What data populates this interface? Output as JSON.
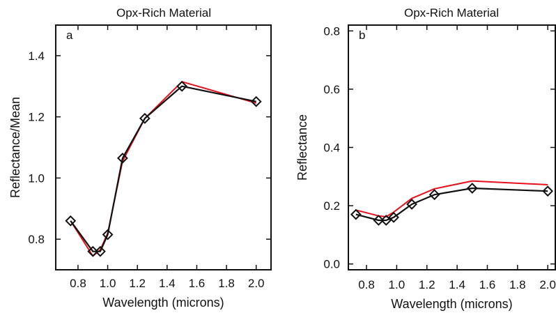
{
  "chart_data": [
    {
      "type": "line",
      "panel_letter": "a",
      "title": "Opx-Rich Material",
      "xlabel": "Wavelength (microns)",
      "ylabel": "Reflectance/Mean",
      "xlim": [
        0.65,
        2.1
      ],
      "ylim": [
        0.7,
        1.5
      ],
      "xticks": [
        0.8,
        1.0,
        1.2,
        1.4,
        1.6,
        1.8,
        2.0
      ],
      "xtick_labels": [
        "0.8",
        "1.0",
        "1.2",
        "1.4",
        "1.6",
        "1.8",
        "2.0"
      ],
      "yticks": [
        0.8,
        1.0,
        1.2,
        1.4
      ],
      "ytick_labels": [
        "0.8",
        "1.0",
        "1.2",
        "1.4"
      ],
      "series": [
        {
          "color": "#111111",
          "marker": "diamond",
          "x": [
            0.75,
            0.9,
            0.95,
            1.0,
            1.1,
            1.25,
            1.5,
            2.0
          ],
          "y": [
            0.86,
            0.76,
            0.76,
            0.815,
            1.065,
            1.195,
            1.3,
            1.25
          ]
        },
        {
          "color": "#e8101a",
          "marker": "none",
          "x": [
            0.75,
            0.9,
            0.95,
            1.0,
            1.1,
            1.25,
            1.5,
            2.0
          ],
          "y": [
            0.86,
            0.745,
            0.765,
            0.82,
            1.055,
            1.195,
            1.315,
            1.245
          ]
        }
      ]
    },
    {
      "type": "line",
      "panel_letter": "b",
      "title": "Opx-Rich Material",
      "xlabel": "Wavelength (microns)",
      "ylabel": "Reflectance",
      "xlim": [
        0.68,
        2.05
      ],
      "ylim": [
        -0.02,
        0.82
      ],
      "xticks": [
        0.8,
        1.0,
        1.2,
        1.4,
        1.6,
        1.8,
        2.0
      ],
      "xtick_labels": [
        "0.8",
        "1.0",
        "1.2",
        "1.4",
        "1.6",
        "1.8",
        "2.0"
      ],
      "yticks": [
        0.0,
        0.2,
        0.4,
        0.6,
        0.8
      ],
      "ytick_labels": [
        "0.0",
        "0.2",
        "0.4",
        "0.6",
        "0.8"
      ],
      "series": [
        {
          "color": "#111111",
          "marker": "diamond",
          "x": [
            0.73,
            0.88,
            0.93,
            0.98,
            1.1,
            1.25,
            1.5,
            2.0
          ],
          "y": [
            0.17,
            0.15,
            0.15,
            0.16,
            0.205,
            0.238,
            0.26,
            0.25
          ]
        },
        {
          "color": "#e8101a",
          "marker": "none",
          "x": [
            0.73,
            0.88,
            0.93,
            0.98,
            1.1,
            1.25,
            1.5,
            2.0
          ],
          "y": [
            0.185,
            0.165,
            0.162,
            0.178,
            0.225,
            0.258,
            0.285,
            0.272
          ]
        }
      ]
    }
  ]
}
